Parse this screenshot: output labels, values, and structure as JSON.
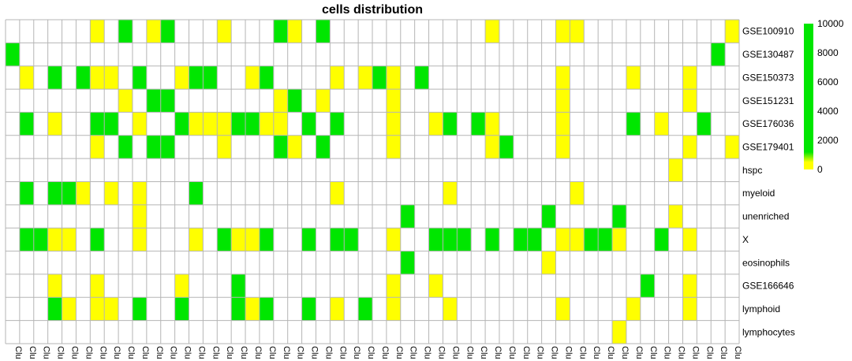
{
  "chart_data": {
    "type": "heatmap",
    "title": "cells distribution",
    "rows": [
      "GSE100910",
      "GSE130487",
      "GSE150373",
      "GSE151231",
      "GSE176036",
      "GSE179401",
      "hspc",
      "myeloid",
      "unenriched",
      "X",
      "eosinophils",
      "GSE166646",
      "lymphoid",
      "lymphocytes"
    ],
    "columns": [
      "Clu",
      "Clu",
      "Clu",
      "Clu",
      "Clu",
      "Clu",
      "Clu",
      "Clu",
      "Clu",
      "Clu",
      "Clu",
      "Clu",
      "Clu",
      "Clu",
      "Clu",
      "Clu",
      "Clu",
      "Clu",
      "Clu",
      "Clu",
      "Clu",
      "Clu",
      "Clu",
      "Clu",
      "Clu",
      "Clu",
      "Clu",
      "Clu",
      "Clu",
      "Clu",
      "Clu",
      "Clu",
      "Clu",
      "Clu",
      "Clu",
      "Clu",
      "Clu",
      "Clu",
      "Clu",
      "Clu",
      "Clu",
      "Clu",
      "Clu",
      "Clu",
      "Clu",
      "Clu",
      "Clu",
      "Clu",
      "Clu",
      "Clu",
      "Clu",
      "Clu"
    ],
    "color_scale": {
      "min": 0,
      "max": 10000,
      "ticks": [
        "10000",
        "8000",
        "6000",
        "4000",
        "2000",
        "0"
      ],
      "low_color": "#ffff00",
      "high_color": "#00e600",
      "empty_color": "#ffffff",
      "grid_color": "#b5b5b5"
    },
    "legend_placement": "right",
    "cells": [
      {
        "row": 0,
        "col": 6,
        "value": 0
      },
      {
        "row": 0,
        "col": 8,
        "value": 10000
      },
      {
        "row": 0,
        "col": 10,
        "value": 0
      },
      {
        "row": 0,
        "col": 11,
        "value": 10000
      },
      {
        "row": 0,
        "col": 15,
        "value": 0
      },
      {
        "row": 0,
        "col": 19,
        "value": 10000
      },
      {
        "row": 0,
        "col": 20,
        "value": 0
      },
      {
        "row": 0,
        "col": 22,
        "value": 10000
      },
      {
        "row": 0,
        "col": 34,
        "value": 0
      },
      {
        "row": 0,
        "col": 39,
        "value": 0
      },
      {
        "row": 0,
        "col": 40,
        "value": 0
      },
      {
        "row": 0,
        "col": 51,
        "value": 0
      },
      {
        "row": 1,
        "col": 0,
        "value": 10000
      },
      {
        "row": 1,
        "col": 50,
        "value": 10000
      },
      {
        "row": 2,
        "col": 1,
        "value": 0
      },
      {
        "row": 2,
        "col": 3,
        "value": 10000
      },
      {
        "row": 2,
        "col": 5,
        "value": 10000
      },
      {
        "row": 2,
        "col": 6,
        "value": 0
      },
      {
        "row": 2,
        "col": 7,
        "value": 0
      },
      {
        "row": 2,
        "col": 9,
        "value": 10000
      },
      {
        "row": 2,
        "col": 12,
        "value": 0
      },
      {
        "row": 2,
        "col": 13,
        "value": 10000
      },
      {
        "row": 2,
        "col": 14,
        "value": 10000
      },
      {
        "row": 2,
        "col": 17,
        "value": 0
      },
      {
        "row": 2,
        "col": 18,
        "value": 10000
      },
      {
        "row": 2,
        "col": 23,
        "value": 0
      },
      {
        "row": 2,
        "col": 25,
        "value": 0
      },
      {
        "row": 2,
        "col": 26,
        "value": 10000
      },
      {
        "row": 2,
        "col": 27,
        "value": 0
      },
      {
        "row": 2,
        "col": 29,
        "value": 10000
      },
      {
        "row": 2,
        "col": 39,
        "value": 0
      },
      {
        "row": 2,
        "col": 44,
        "value": 0
      },
      {
        "row": 2,
        "col": 48,
        "value": 0
      },
      {
        "row": 3,
        "col": 8,
        "value": 0
      },
      {
        "row": 3,
        "col": 10,
        "value": 10000
      },
      {
        "row": 3,
        "col": 11,
        "value": 10000
      },
      {
        "row": 3,
        "col": 19,
        "value": 0
      },
      {
        "row": 3,
        "col": 20,
        "value": 10000
      },
      {
        "row": 3,
        "col": 22,
        "value": 0
      },
      {
        "row": 3,
        "col": 27,
        "value": 0
      },
      {
        "row": 3,
        "col": 39,
        "value": 0
      },
      {
        "row": 3,
        "col": 48,
        "value": 0
      },
      {
        "row": 4,
        "col": 1,
        "value": 10000
      },
      {
        "row": 4,
        "col": 3,
        "value": 0
      },
      {
        "row": 4,
        "col": 6,
        "value": 10000
      },
      {
        "row": 4,
        "col": 7,
        "value": 10000
      },
      {
        "row": 4,
        "col": 9,
        "value": 0
      },
      {
        "row": 4,
        "col": 12,
        "value": 10000
      },
      {
        "row": 4,
        "col": 13,
        "value": 0
      },
      {
        "row": 4,
        "col": 14,
        "value": 0
      },
      {
        "row": 4,
        "col": 15,
        "value": 0
      },
      {
        "row": 4,
        "col": 16,
        "value": 10000
      },
      {
        "row": 4,
        "col": 17,
        "value": 10000
      },
      {
        "row": 4,
        "col": 18,
        "value": 0
      },
      {
        "row": 4,
        "col": 19,
        "value": 0
      },
      {
        "row": 4,
        "col": 21,
        "value": 10000
      },
      {
        "row": 4,
        "col": 23,
        "value": 10000
      },
      {
        "row": 4,
        "col": 27,
        "value": 0
      },
      {
        "row": 4,
        "col": 30,
        "value": 0
      },
      {
        "row": 4,
        "col": 31,
        "value": 10000
      },
      {
        "row": 4,
        "col": 33,
        "value": 10000
      },
      {
        "row": 4,
        "col": 34,
        "value": 0
      },
      {
        "row": 4,
        "col": 39,
        "value": 0
      },
      {
        "row": 4,
        "col": 44,
        "value": 10000
      },
      {
        "row": 4,
        "col": 46,
        "value": 0
      },
      {
        "row": 4,
        "col": 49,
        "value": 10000
      },
      {
        "row": 5,
        "col": 6,
        "value": 0
      },
      {
        "row": 5,
        "col": 8,
        "value": 10000
      },
      {
        "row": 5,
        "col": 10,
        "value": 10000
      },
      {
        "row": 5,
        "col": 11,
        "value": 10000
      },
      {
        "row": 5,
        "col": 15,
        "value": 0
      },
      {
        "row": 5,
        "col": 19,
        "value": 10000
      },
      {
        "row": 5,
        "col": 20,
        "value": 0
      },
      {
        "row": 5,
        "col": 22,
        "value": 10000
      },
      {
        "row": 5,
        "col": 27,
        "value": 0
      },
      {
        "row": 5,
        "col": 34,
        "value": 0
      },
      {
        "row": 5,
        "col": 35,
        "value": 10000
      },
      {
        "row": 5,
        "col": 39,
        "value": 0
      },
      {
        "row": 5,
        "col": 48,
        "value": 0
      },
      {
        "row": 5,
        "col": 51,
        "value": 0
      },
      {
        "row": 6,
        "col": 47,
        "value": 0
      },
      {
        "row": 7,
        "col": 1,
        "value": 10000
      },
      {
        "row": 7,
        "col": 3,
        "value": 10000
      },
      {
        "row": 7,
        "col": 4,
        "value": 10000
      },
      {
        "row": 7,
        "col": 5,
        "value": 0
      },
      {
        "row": 7,
        "col": 7,
        "value": 0
      },
      {
        "row": 7,
        "col": 9,
        "value": 0
      },
      {
        "row": 7,
        "col": 13,
        "value": 10000
      },
      {
        "row": 7,
        "col": 23,
        "value": 0
      },
      {
        "row": 7,
        "col": 31,
        "value": 0
      },
      {
        "row": 7,
        "col": 40,
        "value": 0
      },
      {
        "row": 8,
        "col": 9,
        "value": 0
      },
      {
        "row": 8,
        "col": 28,
        "value": 10000
      },
      {
        "row": 8,
        "col": 38,
        "value": 10000
      },
      {
        "row": 8,
        "col": 43,
        "value": 10000
      },
      {
        "row": 8,
        "col": 47,
        "value": 0
      },
      {
        "row": 9,
        "col": 1,
        "value": 10000
      },
      {
        "row": 9,
        "col": 2,
        "value": 10000
      },
      {
        "row": 9,
        "col": 3,
        "value": 0
      },
      {
        "row": 9,
        "col": 4,
        "value": 0
      },
      {
        "row": 9,
        "col": 6,
        "value": 10000
      },
      {
        "row": 9,
        "col": 9,
        "value": 0
      },
      {
        "row": 9,
        "col": 13,
        "value": 0
      },
      {
        "row": 9,
        "col": 15,
        "value": 10000
      },
      {
        "row": 9,
        "col": 16,
        "value": 0
      },
      {
        "row": 9,
        "col": 17,
        "value": 0
      },
      {
        "row": 9,
        "col": 18,
        "value": 10000
      },
      {
        "row": 9,
        "col": 21,
        "value": 10000
      },
      {
        "row": 9,
        "col": 23,
        "value": 10000
      },
      {
        "row": 9,
        "col": 24,
        "value": 10000
      },
      {
        "row": 9,
        "col": 27,
        "value": 0
      },
      {
        "row": 9,
        "col": 30,
        "value": 10000
      },
      {
        "row": 9,
        "col": 31,
        "value": 10000
      },
      {
        "row": 9,
        "col": 32,
        "value": 10000
      },
      {
        "row": 9,
        "col": 34,
        "value": 10000
      },
      {
        "row": 9,
        "col": 36,
        "value": 10000
      },
      {
        "row": 9,
        "col": 37,
        "value": 10000
      },
      {
        "row": 9,
        "col": 39,
        "value": 0
      },
      {
        "row": 9,
        "col": 40,
        "value": 0
      },
      {
        "row": 9,
        "col": 41,
        "value": 10000
      },
      {
        "row": 9,
        "col": 42,
        "value": 10000
      },
      {
        "row": 9,
        "col": 43,
        "value": 0
      },
      {
        "row": 9,
        "col": 46,
        "value": 10000
      },
      {
        "row": 9,
        "col": 48,
        "value": 0
      },
      {
        "row": 10,
        "col": 28,
        "value": 10000
      },
      {
        "row": 10,
        "col": 38,
        "value": 0
      },
      {
        "row": 11,
        "col": 3,
        "value": 0
      },
      {
        "row": 11,
        "col": 6,
        "value": 0
      },
      {
        "row": 11,
        "col": 12,
        "value": 0
      },
      {
        "row": 11,
        "col": 16,
        "value": 10000
      },
      {
        "row": 11,
        "col": 27,
        "value": 0
      },
      {
        "row": 11,
        "col": 30,
        "value": 0
      },
      {
        "row": 11,
        "col": 45,
        "value": 10000
      },
      {
        "row": 11,
        "col": 48,
        "value": 0
      },
      {
        "row": 12,
        "col": 3,
        "value": 10000
      },
      {
        "row": 12,
        "col": 4,
        "value": 0
      },
      {
        "row": 12,
        "col": 6,
        "value": 0
      },
      {
        "row": 12,
        "col": 7,
        "value": 0
      },
      {
        "row": 12,
        "col": 9,
        "value": 10000
      },
      {
        "row": 12,
        "col": 12,
        "value": 10000
      },
      {
        "row": 12,
        "col": 16,
        "value": 10000
      },
      {
        "row": 12,
        "col": 17,
        "value": 0
      },
      {
        "row": 12,
        "col": 18,
        "value": 10000
      },
      {
        "row": 12,
        "col": 21,
        "value": 10000
      },
      {
        "row": 12,
        "col": 23,
        "value": 0
      },
      {
        "row": 12,
        "col": 25,
        "value": 10000
      },
      {
        "row": 12,
        "col": 27,
        "value": 0
      },
      {
        "row": 12,
        "col": 31,
        "value": 0
      },
      {
        "row": 12,
        "col": 39,
        "value": 0
      },
      {
        "row": 12,
        "col": 44,
        "value": 0
      },
      {
        "row": 12,
        "col": 48,
        "value": 0
      },
      {
        "row": 13,
        "col": 43,
        "value": 0
      }
    ]
  }
}
